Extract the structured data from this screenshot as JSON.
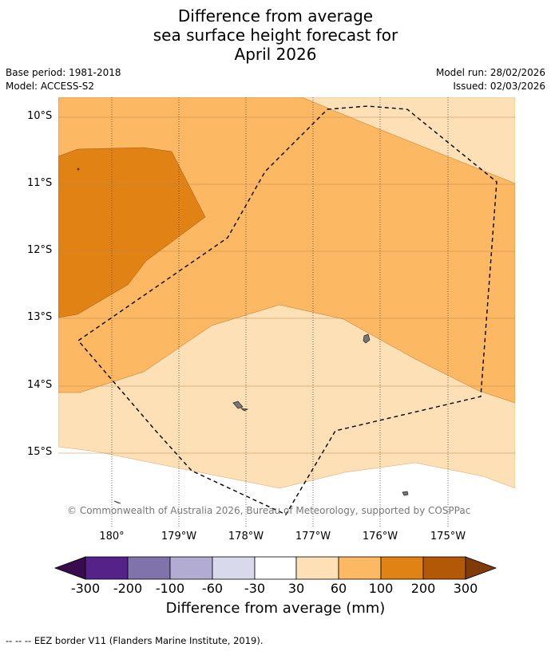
{
  "title": {
    "line1": "Difference from average",
    "line2": "sea surface height forecast for",
    "line3": "April 2026"
  },
  "meta": {
    "base_period": "Base period: 1981-2018",
    "model": "Model: ACCESS-S2",
    "model_run": "Model run: 28/02/2026",
    "issued": "Issued: 02/03/2026"
  },
  "axes": {
    "lat_labels": [
      "10°S",
      "11°S",
      "12°S",
      "13°S",
      "14°S",
      "15°S"
    ],
    "lon_labels": [
      "180°",
      "179°W",
      "178°W",
      "177°W",
      "176°W",
      "175°W"
    ]
  },
  "copyright": "© Commonwealth of Australia 2026, Bureau of Meteorology, supported by COSPPac",
  "colorbar": {
    "ticks": [
      "-300",
      "-200",
      "-100",
      "-60",
      "-30",
      "30",
      "60",
      "100",
      "200",
      "300"
    ],
    "title": "Difference from average (mm)",
    "colors": {
      "below_min": "#3a0a4f",
      "b1": "#542288",
      "b2": "#8073ac",
      "b3": "#b2abd2",
      "b4": "#d8daeb",
      "b5": "#ffffff",
      "b6": "#fee0b6",
      "b7": "#fdb863",
      "b8": "#e08214",
      "b9": "#b35806",
      "above_max": "#7f3b08"
    }
  },
  "footer": "--  --  -- EEZ border V11 (Flanders Marine Institute, 2019)."
}
